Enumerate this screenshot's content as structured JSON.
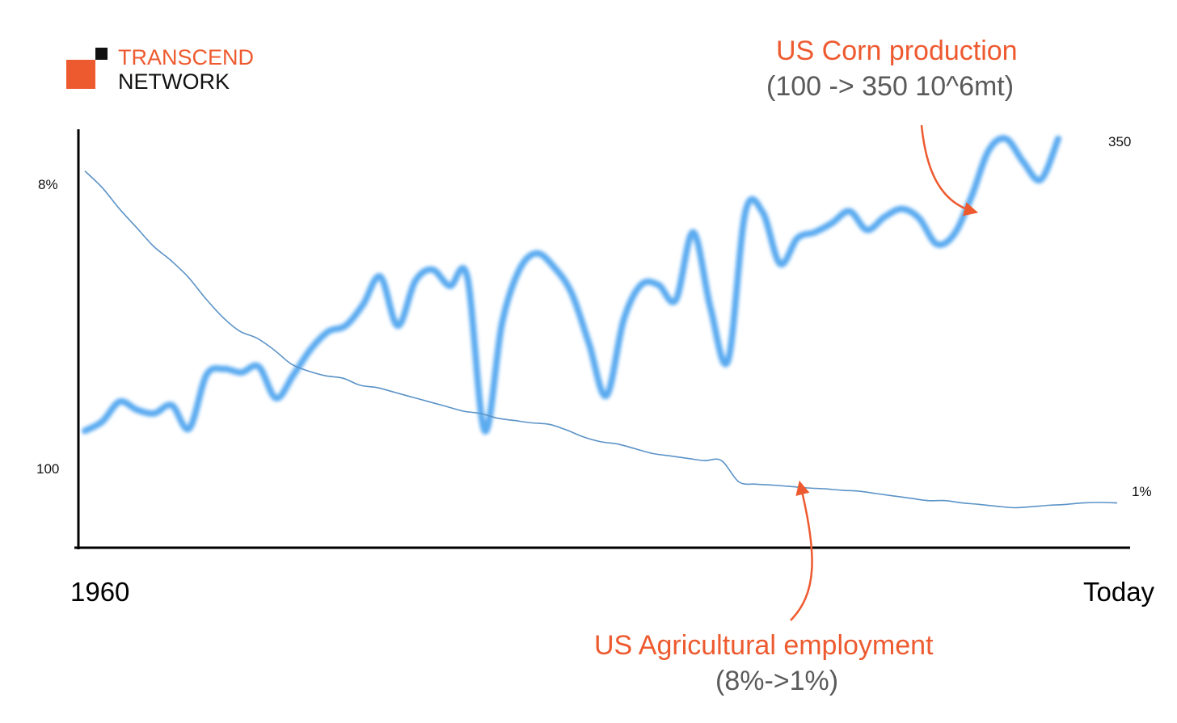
{
  "brand": {
    "line1": "TRANSCEND",
    "line2": "NETWORK",
    "accent_color": "#ee5a2f",
    "dark_color": "#111111"
  },
  "annotations": {
    "corn_title": "US Corn production",
    "corn_sub": "(100 -> 350 10^6mt)",
    "employment_title": "US Agricultural employment",
    "employment_sub": "(8%->1%)"
  },
  "colors": {
    "accent": "#ee5a2f",
    "annotation_gray": "#5a5a5a",
    "corn_line": "#5aaaf0",
    "employment_line": "#5b93c7",
    "axis": "#000000"
  },
  "chart_data": {
    "type": "line",
    "title": "",
    "xlabel": "",
    "ylabel": "",
    "x_ticks": [
      "1960",
      "Today"
    ],
    "left_axis_ticks": [
      "8%",
      "100"
    ],
    "right_axis_ticks": [
      "350",
      "1%"
    ],
    "grid": false,
    "series": [
      {
        "name": "US Corn production",
        "unit": "10^6mt",
        "start": 100,
        "end": 350,
        "ylim": [
          0,
          372
        ],
        "x": [
          0,
          1,
          2,
          3,
          4,
          5,
          6,
          7,
          8,
          9,
          10,
          11,
          12,
          13,
          14,
          15,
          16,
          17,
          18,
          19,
          20,
          21,
          22,
          23,
          24,
          25,
          26,
          27,
          28,
          29,
          30,
          31,
          32,
          33,
          34,
          35,
          36,
          37,
          38,
          39,
          40,
          41,
          42,
          43,
          44,
          45,
          46,
          47,
          48,
          49,
          50,
          51,
          52,
          53,
          54,
          55,
          56,
          57,
          58,
          59,
          60
        ],
        "values": [
          100,
          108,
          125,
          118,
          115,
          122,
          102,
          148,
          153,
          150,
          155,
          128,
          148,
          170,
          185,
          190,
          208,
          232,
          190,
          228,
          238,
          224,
          232,
          100,
          192,
          238,
          252,
          240,
          218,
          175,
          130,
          195,
          225,
          225,
          212,
          270,
          205,
          160,
          287,
          287,
          243,
          265,
          270,
          278,
          288,
          272,
          283,
          290,
          282,
          260,
          268,
          300,
          340,
          350,
          330,
          315,
          350,
          null,
          null,
          null,
          null
        ]
      },
      {
        "name": "US Agricultural employment",
        "unit": "%",
        "start": 8,
        "end": 1,
        "ylim": [
          0,
          9.23
        ],
        "x": [
          0,
          1,
          2,
          3,
          4,
          5,
          6,
          7,
          8,
          9,
          10,
          11,
          12,
          13,
          14,
          15,
          16,
          17,
          18,
          19,
          20,
          21,
          22,
          23,
          24,
          25,
          26,
          27,
          28,
          29,
          30,
          31,
          32,
          33,
          34,
          35,
          36,
          37,
          38,
          39,
          40,
          41,
          42,
          43,
          44,
          45,
          46,
          47,
          48,
          49,
          50,
          51,
          52,
          53,
          54,
          55,
          56,
          57,
          58,
          59,
          60
        ],
        "values": [
          8.0,
          7.65,
          7.2,
          6.8,
          6.4,
          6.1,
          5.75,
          5.3,
          4.9,
          4.6,
          4.45,
          4.2,
          3.9,
          3.75,
          3.65,
          3.6,
          3.45,
          3.4,
          3.3,
          3.2,
          3.1,
          3.0,
          2.9,
          2.85,
          2.75,
          2.7,
          2.65,
          2.62,
          2.5,
          2.35,
          2.25,
          2.2,
          2.1,
          2.0,
          1.95,
          1.9,
          1.85,
          1.85,
          1.4,
          1.35,
          1.33,
          1.3,
          1.27,
          1.25,
          1.22,
          1.2,
          1.15,
          1.1,
          1.05,
          1.0,
          1.0,
          0.95,
          0.92,
          0.88,
          0.85,
          0.87,
          0.9,
          0.92,
          0.95,
          0.96,
          0.95
        ]
      }
    ],
    "annotations": [
      {
        "label": "US Corn production",
        "detail": "(100 -> 350 10^6mt)",
        "color": "#ee5a2f"
      },
      {
        "label": "US Agricultural employment",
        "detail": "(8%->1%)",
        "color": "#ee5a2f"
      }
    ]
  }
}
